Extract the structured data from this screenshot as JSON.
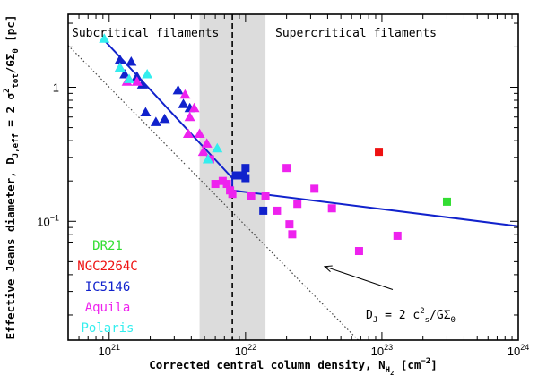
{
  "chart_data": {
    "type": "scatter",
    "title": "",
    "xlabel": "Corrected central column density, N",
    "xlabel_sub": "H",
    "xlabel_subsub": "2",
    "xlabel_unit": " [cm",
    "xlabel_unit_exp": "−2",
    "xlabel_unit_end": "]",
    "ylabel": "Effective Jeans diameter, D",
    "ylabel_sub": "J,eff",
    "ylabel_eq": " = 2 σ",
    "ylabel_exp": "2",
    "ylabel_sub2": "tot",
    "ylabel_end": "/GΣ",
    "ylabel_sub3": "0",
    "ylabel_unit": " [pc]",
    "x_scale": "log",
    "y_scale": "log",
    "xlim": [
      5e+20,
      1e+24
    ],
    "ylim": [
      0.013,
      3.5
    ],
    "x_ticks": [
      {
        "value": 1e+21,
        "base": "10",
        "exp": "21"
      },
      {
        "value": 1e+22,
        "base": "10",
        "exp": "22"
      },
      {
        "value": 1e+23,
        "base": "10",
        "exp": "23"
      },
      {
        "value": 1e+24,
        "base": "10",
        "exp": "24"
      }
    ],
    "y_ticks": [
      {
        "value": 1,
        "label": "1"
      },
      {
        "value": 0.1,
        "label": "10",
        "exp": "−1"
      }
    ],
    "shaded_band": [
      4.6e+21,
      1.4e+22
    ],
    "critical_line_x": 8e+21,
    "region_labels": {
      "left": "Subcritical filaments",
      "right": "Supercritical filaments"
    },
    "fit_line": [
      {
        "x": 9e+20,
        "y": 2.3
      },
      {
        "x": 8e+21,
        "y": 0.21
      },
      {
        "x": 8e+21,
        "y": 0.17
      },
      {
        "x": 1e+24,
        "y": 0.092
      }
    ],
    "thermal_line": [
      {
        "x": 5e+20,
        "y": 2.05
      },
      {
        "x": 6.7e+22,
        "y": 0.013
      }
    ],
    "annotation": {
      "text": "D",
      "sub": "J",
      "rest": " = 2 c",
      "exp": "2",
      "sub2": "s",
      "end": "/GΣ",
      "sub3": "0",
      "arrow_from": {
        "x": 1.2e+23,
        "y": 0.031
      },
      "arrow_to": {
        "x": 3.8e+22,
        "y": 0.046
      }
    },
    "legend": [
      {
        "name": "DR21",
        "color": "#33dd33"
      },
      {
        "name": "NGC2264C",
        "color": "#ee1111"
      },
      {
        "name": "IC5146",
        "color": "#1122cc"
      },
      {
        "name": "Aquila",
        "color": "#ee22ee"
      },
      {
        "name": "Polaris",
        "color": "#33eeee"
      }
    ],
    "series": [
      {
        "name": "DR21",
        "marker": "square",
        "points": [
          [
            3e+23,
            0.14
          ]
        ]
      },
      {
        "name": "NGC2264C",
        "marker": "square",
        "points": [
          [
            9.5e+22,
            0.33
          ]
        ]
      },
      {
        "name": "IC5146",
        "marker": "triangle",
        "points": [
          [
            1.2e+21,
            1.6
          ],
          [
            1.3e+21,
            1.25
          ],
          [
            1.45e+21,
            1.55
          ],
          [
            1.6e+21,
            1.2
          ],
          [
            1.75e+21,
            1.05
          ],
          [
            1.85e+21,
            0.65
          ],
          [
            2.2e+21,
            0.55
          ],
          [
            2.55e+21,
            0.58
          ],
          [
            3.2e+21,
            0.95
          ],
          [
            3.5e+21,
            0.75
          ],
          [
            3.9e+21,
            0.7
          ]
        ]
      },
      {
        "name": "IC5146",
        "marker": "square",
        "points": [
          [
            8.5e+21,
            0.22
          ],
          [
            9.5e+21,
            0.22
          ],
          [
            1e+22,
            0.25
          ],
          [
            1e+22,
            0.21
          ],
          [
            1.35e+22,
            0.12
          ]
        ]
      },
      {
        "name": "Aquila",
        "marker": "triangle",
        "points": [
          [
            1.2e+21,
            1.4
          ],
          [
            1.35e+21,
            1.1
          ],
          [
            1.6e+21,
            1.1
          ],
          [
            3.6e+21,
            0.88
          ],
          [
            3.9e+21,
            0.6
          ],
          [
            4.2e+21,
            0.7
          ],
          [
            3.8e+21,
            0.45
          ],
          [
            4.6e+21,
            0.45
          ],
          [
            5.2e+21,
            0.38
          ],
          [
            4.9e+21,
            0.33
          ]
        ]
      },
      {
        "name": "Aquila",
        "marker": "square",
        "points": [
          [
            5.5e+21,
            0.29
          ],
          [
            6e+21,
            0.19
          ],
          [
            6.8e+21,
            0.2
          ],
          [
            7.3e+21,
            0.19
          ],
          [
            7.7e+21,
            0.17
          ],
          [
            8e+21,
            0.16
          ],
          [
            1.1e+22,
            0.155
          ],
          [
            1.4e+22,
            0.155
          ],
          [
            1.7e+22,
            0.12
          ],
          [
            2e+22,
            0.25
          ],
          [
            2.1e+22,
            0.095
          ],
          [
            2.2e+22,
            0.08
          ],
          [
            2.4e+22,
            0.135
          ],
          [
            3.2e+22,
            0.175
          ],
          [
            4.3e+22,
            0.125
          ],
          [
            6.8e+22,
            0.06
          ],
          [
            1.3e+23,
            0.078
          ]
        ]
      },
      {
        "name": "Polaris",
        "marker": "triangle",
        "points": [
          [
            9.2e+20,
            2.3
          ],
          [
            1.2e+21,
            1.4
          ],
          [
            1.4e+21,
            1.15
          ],
          [
            1.9e+21,
            1.25
          ],
          [
            5.3e+21,
            0.29
          ],
          [
            6.2e+21,
            0.35
          ]
        ]
      }
    ]
  }
}
